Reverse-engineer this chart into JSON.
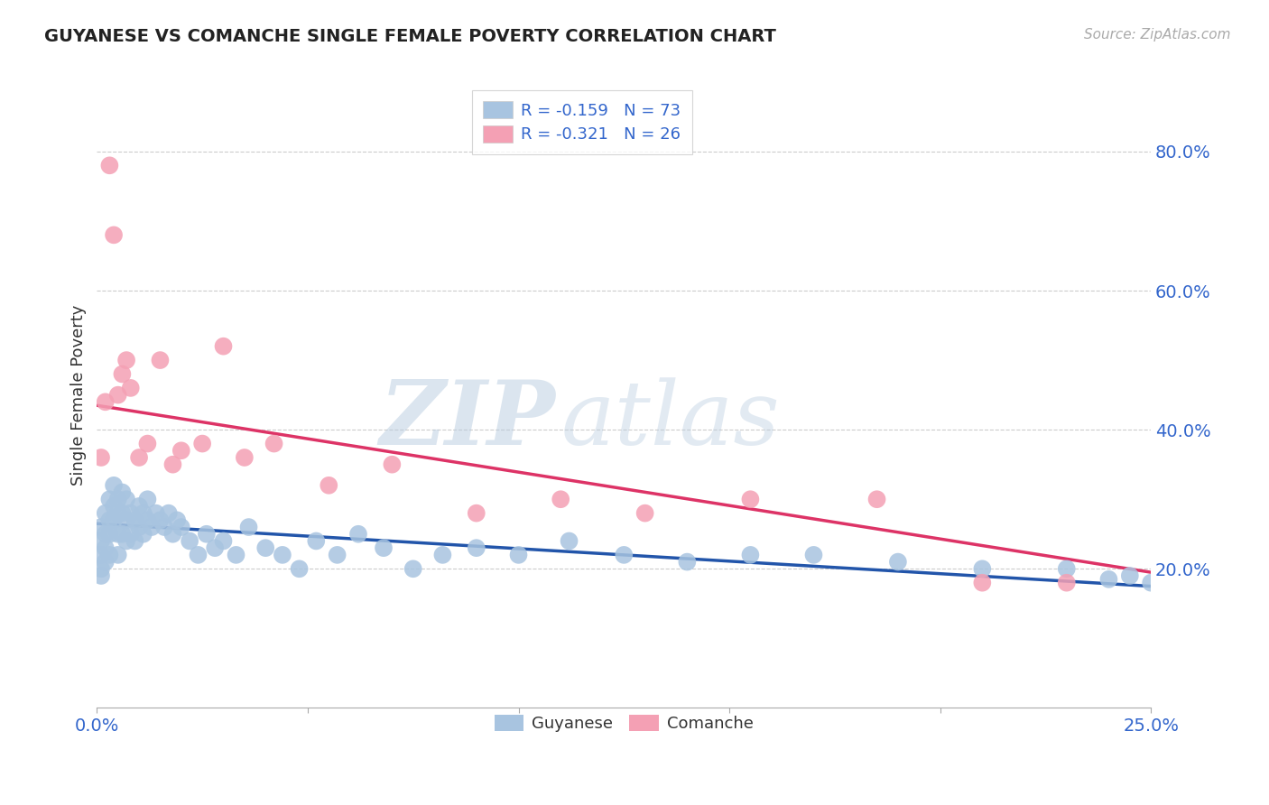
{
  "title": "GUYANESE VS COMANCHE SINGLE FEMALE POVERTY CORRELATION CHART",
  "ylabel": "Single Female Poverty",
  "source": "Source: ZipAtlas.com",
  "watermark_zip": "ZIP",
  "watermark_atlas": "atlas",
  "guyanese_color": "#a8c4e0",
  "comanche_color": "#f4a0b4",
  "guyanese_line_color": "#2255aa",
  "comanche_line_color": "#dd3366",
  "legend_line1": "R = -0.159   N = 73",
  "legend_line2": "R = -0.321   N = 26",
  "background_color": "#ffffff",
  "grid_color": "#cccccc",
  "text_color_blue": "#3366cc",
  "text_color_dark": "#333333",
  "title_color": "#222222",
  "source_color": "#aaaaaa",
  "guyanese_x": [
    0.001,
    0.001,
    0.001,
    0.001,
    0.001,
    0.002,
    0.002,
    0.002,
    0.002,
    0.003,
    0.003,
    0.003,
    0.003,
    0.004,
    0.004,
    0.004,
    0.005,
    0.005,
    0.005,
    0.005,
    0.006,
    0.006,
    0.006,
    0.007,
    0.007,
    0.007,
    0.008,
    0.008,
    0.009,
    0.009,
    0.01,
    0.01,
    0.011,
    0.011,
    0.012,
    0.012,
    0.013,
    0.014,
    0.015,
    0.016,
    0.017,
    0.018,
    0.019,
    0.02,
    0.022,
    0.024,
    0.026,
    0.028,
    0.03,
    0.033,
    0.036,
    0.04,
    0.044,
    0.048,
    0.052,
    0.057,
    0.062,
    0.068,
    0.075,
    0.082,
    0.09,
    0.1,
    0.112,
    0.125,
    0.14,
    0.155,
    0.17,
    0.19,
    0.21,
    0.23,
    0.24,
    0.245,
    0.25
  ],
  "guyanese_y": [
    0.26,
    0.24,
    0.22,
    0.2,
    0.19,
    0.28,
    0.25,
    0.23,
    0.21,
    0.3,
    0.27,
    0.25,
    0.22,
    0.32,
    0.29,
    0.27,
    0.3,
    0.28,
    0.25,
    0.22,
    0.31,
    0.28,
    0.25,
    0.3,
    0.27,
    0.24,
    0.28,
    0.25,
    0.27,
    0.24,
    0.29,
    0.26,
    0.28,
    0.25,
    0.3,
    0.27,
    0.26,
    0.28,
    0.27,
    0.26,
    0.28,
    0.25,
    0.27,
    0.26,
    0.24,
    0.22,
    0.25,
    0.23,
    0.24,
    0.22,
    0.26,
    0.23,
    0.22,
    0.2,
    0.24,
    0.22,
    0.25,
    0.23,
    0.2,
    0.22,
    0.23,
    0.22,
    0.24,
    0.22,
    0.21,
    0.22,
    0.22,
    0.21,
    0.2,
    0.2,
    0.185,
    0.19,
    0.18
  ],
  "comanche_x": [
    0.001,
    0.002,
    0.003,
    0.004,
    0.005,
    0.006,
    0.007,
    0.008,
    0.01,
    0.012,
    0.015,
    0.018,
    0.02,
    0.025,
    0.03,
    0.035,
    0.042,
    0.055,
    0.07,
    0.09,
    0.11,
    0.13,
    0.155,
    0.185,
    0.21,
    0.23
  ],
  "comanche_y": [
    0.36,
    0.44,
    0.78,
    0.68,
    0.45,
    0.48,
    0.5,
    0.46,
    0.36,
    0.38,
    0.5,
    0.35,
    0.37,
    0.38,
    0.52,
    0.36,
    0.38,
    0.32,
    0.35,
    0.28,
    0.3,
    0.28,
    0.3,
    0.3,
    0.18,
    0.18
  ],
  "guyanese_trend": [
    0.265,
    0.175
  ],
  "comanche_trend": [
    0.435,
    0.195
  ],
  "xlim": [
    0.0,
    0.25
  ],
  "ylim": [
    0.0,
    0.9
  ],
  "yticks": [
    0.2,
    0.4,
    0.6,
    0.8
  ],
  "ytick_labels": [
    "20.0%",
    "40.0%",
    "60.0%",
    "80.0%"
  ],
  "xtick_labels_show": [
    "0.0%",
    "25.0%"
  ]
}
